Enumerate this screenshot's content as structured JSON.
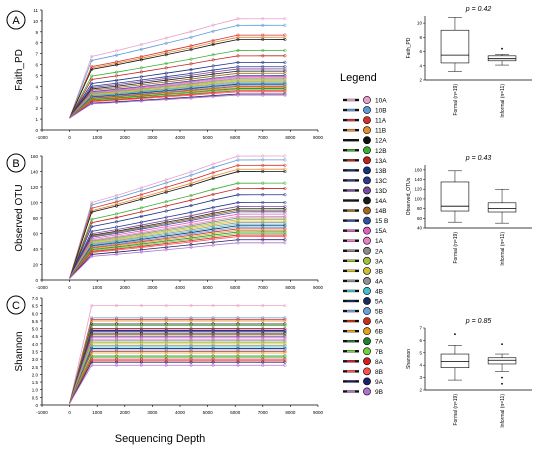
{
  "x_label": "Sequencing Depth",
  "legend_title": "Legend",
  "colors": {
    "axis": "#000000",
    "box_fill": "#ffffff"
  },
  "legend": [
    {
      "code": "10A",
      "color": "#e8a0c8"
    },
    {
      "code": "10B",
      "color": "#5a9ad8"
    },
    {
      "code": "11A",
      "color": "#d8302a"
    },
    {
      "code": "11B",
      "color": "#e88a30"
    },
    {
      "code": "12A",
      "color": "#111111"
    },
    {
      "code": "12B",
      "color": "#38b030"
    },
    {
      "code": "13A",
      "color": "#c02020"
    },
    {
      "code": "13B",
      "color": "#1a3080"
    },
    {
      "code": "13C",
      "color": "#2a3a90"
    },
    {
      "code": "13D",
      "color": "#7a4aa0"
    },
    {
      "code": "14A",
      "color": "#1a1a1a"
    },
    {
      "code": "14B",
      "color": "#a06820"
    },
    {
      "code": "15 B",
      "color": "#3050a0"
    },
    {
      "code": "15A",
      "color": "#e060c0"
    },
    {
      "code": "1A",
      "color": "#e880c8"
    },
    {
      "code": "2A",
      "color": "#8a8a8a"
    },
    {
      "code": "3A",
      "color": "#a0c040"
    },
    {
      "code": "3B",
      "color": "#d0c030"
    },
    {
      "code": "4A",
      "color": "#909090"
    },
    {
      "code": "4B",
      "color": "#40c0d0"
    },
    {
      "code": "5A",
      "color": "#1a2a60"
    },
    {
      "code": "5B",
      "color": "#6aa0e0"
    },
    {
      "code": "6A",
      "color": "#c83020"
    },
    {
      "code": "6B",
      "color": "#e0a020"
    },
    {
      "code": "7A",
      "color": "#208030"
    },
    {
      "code": "7B",
      "color": "#70d040"
    },
    {
      "code": "8A",
      "color": "#d02020"
    },
    {
      "code": "8B",
      "color": "#ff5050"
    },
    {
      "code": "9A",
      "color": "#20206a"
    },
    {
      "code": "9B",
      "color": "#b070d0"
    }
  ],
  "chart_data": [
    {
      "panel": "A",
      "type": "line",
      "ylabel": "Faith_PD",
      "x": [
        0,
        800,
        1700,
        2600,
        3500,
        4400,
        5200,
        6100,
        7000,
        7800
      ],
      "xlim": [
        -1000,
        9000
      ],
      "ylim": [
        0,
        11
      ],
      "xticks": [
        "-1000",
        "0",
        "1000",
        "2000",
        "3000",
        "4000",
        "5000",
        "6000",
        "7000",
        "8000",
        "9000"
      ],
      "yticks": [
        "0",
        "1",
        "2",
        "3",
        "4",
        "5",
        "6",
        "7",
        "8",
        "9",
        "10",
        "11"
      ],
      "series_end_values": [
        10.2,
        9.6,
        8.7,
        8.5,
        8.3,
        7.3,
        6.8,
        6.2,
        5.8,
        5.6,
        5.4,
        5.2,
        5.0,
        4.9,
        4.8,
        4.7,
        4.6,
        4.5,
        4.4,
        4.3,
        4.2,
        4.1,
        4.0,
        3.9,
        3.8,
        3.7,
        3.6,
        3.5,
        3.3,
        3.2
      ]
    },
    {
      "panel": "B",
      "type": "line",
      "ylabel": "Observed OTU",
      "x": [
        0,
        800,
        1700,
        2600,
        3500,
        4400,
        5200,
        6100,
        7000,
        7800
      ],
      "xlim": [
        -1000,
        9000
      ],
      "ylim": [
        0,
        160
      ],
      "xticks": [
        "-1000",
        "0",
        "1000",
        "2000",
        "3000",
        "4000",
        "5000",
        "6000",
        "7000",
        "8000",
        "9000"
      ],
      "yticks": [
        "0",
        "20",
        "40",
        "60",
        "80",
        "100",
        "120",
        "140",
        "160"
      ],
      "series_end_values": [
        160,
        155,
        148,
        143,
        140,
        125,
        118,
        110,
        100,
        95,
        92,
        90,
        88,
        85,
        82,
        80,
        78,
        76,
        74,
        72,
        70,
        68,
        66,
        64,
        62,
        60,
        58,
        56,
        52,
        48
      ]
    },
    {
      "panel": "C",
      "type": "line",
      "ylabel": "Shannon",
      "x": [
        0,
        800,
        1700,
        2600,
        3500,
        4400,
        5200,
        6100,
        7000,
        7800
      ],
      "xlim": [
        -1000,
        9000
      ],
      "ylim": [
        0,
        7
      ],
      "xticks": [
        "-1000",
        "0",
        "1000",
        "2000",
        "3000",
        "4000",
        "5000",
        "6000",
        "7000",
        "8000",
        "9000"
      ],
      "yticks": [
        "0",
        "0.5",
        "1.0",
        "1.5",
        "2.0",
        "2.5",
        "3.0",
        "3.5",
        "4.0",
        "4.5",
        "5.0",
        "5.5",
        "6.0",
        "6.5",
        "7.0"
      ],
      "series_end_values": [
        6.5,
        5.7,
        5.6,
        5.5,
        5.3,
        5.2,
        5.0,
        4.9,
        4.85,
        4.8,
        4.7,
        4.6,
        4.5,
        4.4,
        4.3,
        4.2,
        4.1,
        4.0,
        3.9,
        3.8,
        3.7,
        3.6,
        3.5,
        3.4,
        3.2,
        3.1,
        3.0,
        2.9,
        2.8,
        2.6
      ]
    },
    {
      "panel": "A-box",
      "type": "box",
      "title": "p = 0.42",
      "ylabel": "Faith_PD",
      "categories": [
        "Formal (n=19)",
        "Informal (n=11)"
      ],
      "ylim": [
        2,
        11
      ],
      "yticks": [
        "2",
        "4",
        "6",
        "8",
        "10"
      ],
      "boxes": [
        {
          "min": 3.2,
          "q1": 4.4,
          "median": 5.5,
          "q3": 9.0,
          "max": 10.8,
          "outliers": []
        },
        {
          "min": 4.1,
          "q1": 4.7,
          "median": 5.0,
          "q3": 5.4,
          "max": 5.6,
          "outliers": [
            6.4
          ]
        }
      ]
    },
    {
      "panel": "B-box",
      "type": "box",
      "title": "p = 0.43",
      "ylabel": "Observed_OTUs",
      "categories": [
        "Formal (n=19)",
        "Informal (n=11)"
      ],
      "ylim": [
        40,
        170
      ],
      "yticks": [
        "40",
        "60",
        "80",
        "100",
        "120",
        "140",
        "160"
      ],
      "boxes": [
        {
          "min": 52,
          "q1": 75,
          "median": 85,
          "q3": 135,
          "max": 158,
          "outliers": []
        },
        {
          "min": 50,
          "q1": 73,
          "median": 80,
          "q3": 92,
          "max": 120,
          "outliers": []
        }
      ]
    },
    {
      "panel": "C-box",
      "type": "box",
      "title": "p = 0.85",
      "ylabel": "Shannon",
      "categories": [
        "Formal (n=19)",
        "Informal (n=11)"
      ],
      "ylim": [
        2,
        7
      ],
      "yticks": [
        "2",
        "3",
        "4",
        "5",
        "6",
        "7"
      ],
      "boxes": [
        {
          "min": 2.8,
          "q1": 3.8,
          "median": 4.3,
          "q3": 4.9,
          "max": 5.6,
          "outliers": [
            6.5
          ]
        },
        {
          "min": 3.5,
          "q1": 4.1,
          "median": 4.4,
          "q3": 4.6,
          "max": 4.9,
          "outliers": [
            5.7,
            3.0,
            2.5
          ]
        }
      ]
    }
  ]
}
